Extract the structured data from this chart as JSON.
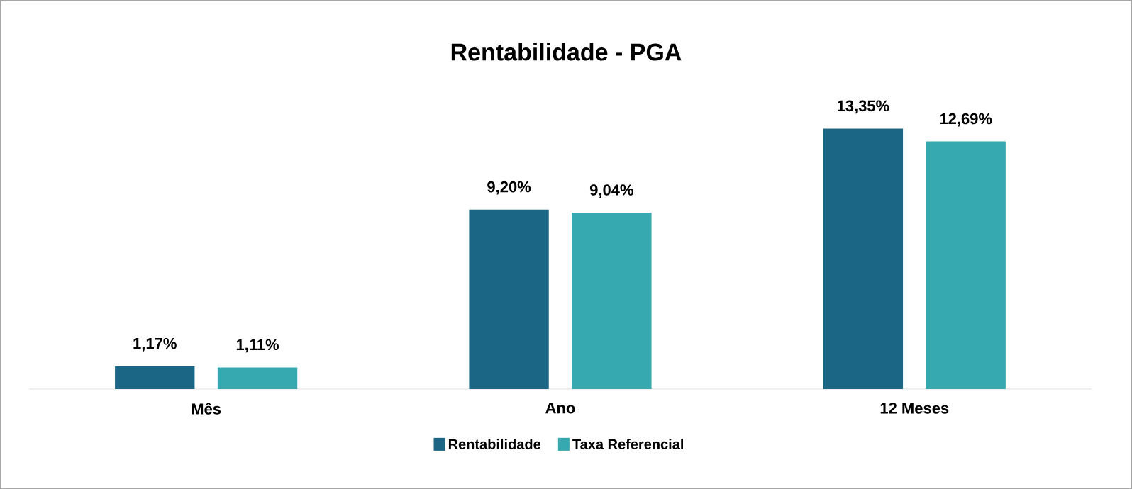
{
  "chart_data": {
    "type": "bar",
    "title": "Rentabilidade - PGA",
    "categories": [
      "Mês",
      "Ano",
      "12 Meses"
    ],
    "series": [
      {
        "name": "Rentabilidade",
        "color": "#1b6684",
        "values": [
          1.17,
          9.2,
          13.35
        ],
        "value_labels": [
          "1,17%",
          "9,20%",
          "13,35%"
        ]
      },
      {
        "name": "Taxa Referencial",
        "color": "#36a9b0",
        "values": [
          1.11,
          9.04,
          12.69
        ],
        "value_labels": [
          "1,11%",
          "9,04%",
          "12,69%"
        ]
      }
    ],
    "legend": "bottom"
  }
}
